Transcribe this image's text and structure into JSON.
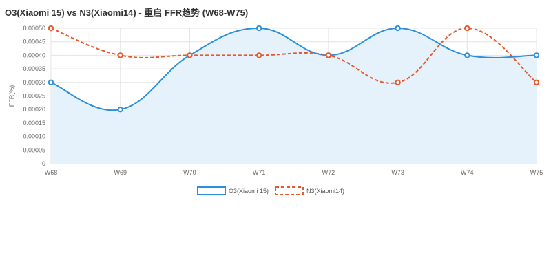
{
  "chart_data": {
    "type": "line",
    "title": "O3(Xiaomi 15) vs N3(Xiaomi14) - 重启 FFR趋势 (W68-W75)",
    "ylabel": "FFR(%)",
    "xlabel": "",
    "categories": [
      "W68",
      "W69",
      "W70",
      "W71",
      "W72",
      "W73",
      "W74",
      "W75"
    ],
    "ylim": [
      0,
      0.0005
    ],
    "yticks": [
      "0.00050",
      "0.00045",
      "0.00040",
      "0.00035",
      "0.00030",
      "0.00025",
      "0.00020",
      "0.00015",
      "0.00010",
      "0.00005",
      "0"
    ],
    "grid": true,
    "legend_position": "bottom",
    "series": [
      {
        "name": "O3(Xiaomi 15)",
        "values": [
          0.0003,
          0.0002,
          0.0004,
          0.0005,
          0.0004,
          0.0005,
          0.0004,
          0.0004
        ],
        "color": "#2a8fdc",
        "fill": "#e6f2fb",
        "dash": false
      },
      {
        "name": "N3(Xiaomi14)",
        "values": [
          0.0005,
          0.0004,
          0.0004,
          0.0004,
          0.0004,
          0.0003,
          0.0005,
          0.0003
        ],
        "color": "#e8572a",
        "dash": true
      }
    ]
  }
}
